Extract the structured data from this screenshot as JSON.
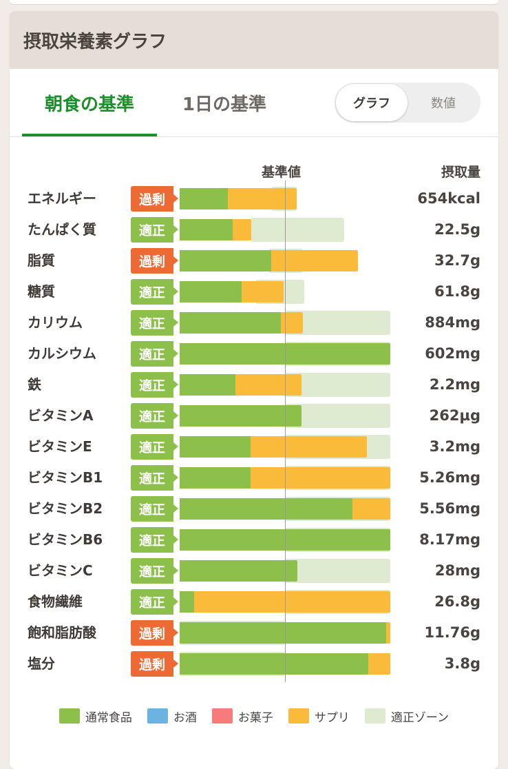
{
  "header": {
    "title": "摂取栄養素グラフ"
  },
  "tabs": {
    "breakfast": "朝食の基準",
    "daily": "1日の基準"
  },
  "toggle": {
    "graph": "グラフ",
    "number": "数値"
  },
  "columns": {
    "reference": "基準値",
    "intake": "摂取量"
  },
  "colors": {
    "food": "#8dbf4b",
    "alcohol": "#6db3e2",
    "snacks": "#f77b7b",
    "supplement": "#fbbb3a",
    "zone": "#dfebd0",
    "ok": "#8dbf4b",
    "over": "#ee6a34",
    "active_tab": "#1c8f2b"
  },
  "scale_note": "bar values are percent of the reference value; the reference line sits at 100",
  "nutrients": [
    {
      "name": "エネルギー",
      "status": "過剰",
      "kind": "over",
      "value": "654kcal",
      "food": 46,
      "supp": 65,
      "zone": [
        87,
        111
      ]
    },
    {
      "name": "たんぱく質",
      "status": "適正",
      "kind": "ok",
      "value": "22.5g",
      "food": 50,
      "supp": 18,
      "zone": [
        67,
        156
      ]
    },
    {
      "name": "脂質",
      "status": "過剰",
      "kind": "over",
      "value": "32.7g",
      "food": 87,
      "supp": 82,
      "zone": [
        84,
        117
      ]
    },
    {
      "name": "糖質",
      "status": "適正",
      "kind": "ok",
      "value": "61.8g",
      "food": 59,
      "supp": 40,
      "zone": [
        72,
        118
      ]
    },
    {
      "name": "カリウム",
      "status": "適正",
      "kind": "ok",
      "value": "884mg",
      "food": 96,
      "supp": 21,
      "zone": [
        100,
        200
      ]
    },
    {
      "name": "カルシウム",
      "status": "適正",
      "kind": "ok",
      "value": "602mg",
      "food": 200,
      "supp": 0,
      "zone": [
        100,
        200
      ]
    },
    {
      "name": "鉄",
      "status": "適正",
      "kind": "ok",
      "value": "2.2mg",
      "food": 53,
      "supp": 63,
      "zone": [
        100,
        200
      ]
    },
    {
      "name": "ビタミンA",
      "status": "適正",
      "kind": "ok",
      "value": "262µg",
      "food": 116,
      "supp": 0,
      "zone": [
        100,
        200
      ]
    },
    {
      "name": "ビタミンE",
      "status": "適正",
      "kind": "ok",
      "value": "3.2mg",
      "food": 67,
      "supp": 111,
      "zone": [
        100,
        200
      ]
    },
    {
      "name": "ビタミンB1",
      "status": "適正",
      "kind": "ok",
      "value": "5.26mg",
      "food": 67,
      "supp": 133,
      "zone": [
        100,
        200
      ]
    },
    {
      "name": "ビタミンB2",
      "status": "適正",
      "kind": "ok",
      "value": "5.56mg",
      "food": 164,
      "supp": 36,
      "zone": [
        100,
        200
      ]
    },
    {
      "name": "ビタミンB6",
      "status": "適正",
      "kind": "ok",
      "value": "8.17mg",
      "food": 200,
      "supp": 0,
      "zone": [
        100,
        200
      ]
    },
    {
      "name": "ビタミンC",
      "status": "適正",
      "kind": "ok",
      "value": "28mg",
      "food": 112,
      "supp": 0,
      "zone": [
        100,
        200
      ]
    },
    {
      "name": "食物繊維",
      "status": "適正",
      "kind": "ok",
      "value": "26.8g",
      "food": 14,
      "supp": 186,
      "zone": [
        100,
        200
      ]
    },
    {
      "name": "飽和脂肪酸",
      "status": "過剰",
      "kind": "over",
      "value": "11.76g",
      "food": 196,
      "supp": 4,
      "zone": [
        0,
        100
      ]
    },
    {
      "name": "塩分",
      "status": "過剰",
      "kind": "over",
      "value": "3.8g",
      "food": 179,
      "supp": 21,
      "zone": [
        0,
        100
      ]
    }
  ],
  "legend": [
    "通常食品",
    "お酒",
    "お菓子",
    "サプリ",
    "適正ゾーン"
  ]
}
